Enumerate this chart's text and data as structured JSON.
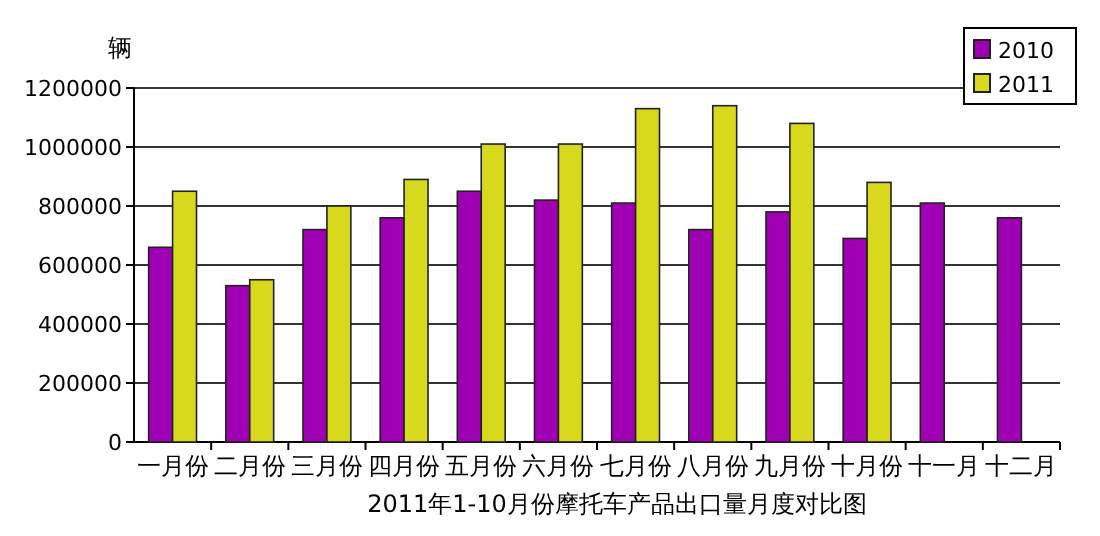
{
  "chart_data": {
    "type": "bar",
    "ylabel": "辆",
    "xlabel": "2011年1-10月份摩托车产品出口量月度对比图",
    "categories": [
      "一月份",
      "二月份",
      "三月份",
      "四月份",
      "五月份",
      "六月份",
      "七月份",
      "八月份",
      "九月份",
      "十月份",
      "十一月",
      "十二月"
    ],
    "series": [
      {
        "name": "2010",
        "color": "#a000b4",
        "values": [
          660000,
          530000,
          720000,
          760000,
          850000,
          820000,
          810000,
          720000,
          780000,
          690000,
          810000,
          760000
        ]
      },
      {
        "name": "2011",
        "color": "#d8d81c",
        "values": [
          850000,
          550000,
          800000,
          890000,
          1010000,
          1010000,
          1130000,
          1140000,
          1080000,
          880000,
          null,
          null
        ]
      }
    ],
    "ylim": [
      0,
      1200000
    ],
    "yticks": [
      0,
      200000,
      400000,
      600000,
      800000,
      1000000,
      1200000
    ],
    "grid": "y",
    "legend": "top right"
  }
}
